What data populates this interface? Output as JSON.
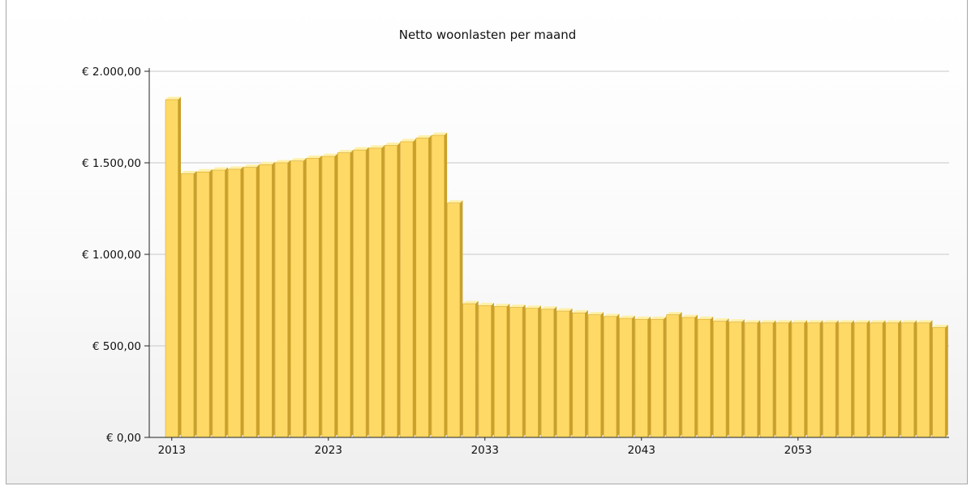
{
  "chart_data": {
    "type": "bar",
    "title": "Netto woonlasten per maand",
    "xlabel": "",
    "ylabel": "",
    "ylim": [
      0,
      2000
    ],
    "yticks": [
      {
        "value": 0,
        "label": "€ 0,00"
      },
      {
        "value": 500,
        "label": "€ 500,00"
      },
      {
        "value": 1000,
        "label": "€ 1.000,00"
      },
      {
        "value": 1500,
        "label": "€ 1.500,00"
      },
      {
        "value": 2000,
        "label": "€ 2.000,00"
      }
    ],
    "xticks": [
      "2013",
      "2023",
      "2033",
      "2043",
      "2053"
    ],
    "grid": true,
    "bar_color": "#ffd966",
    "categories": [
      2013,
      2014,
      2015,
      2016,
      2017,
      2018,
      2019,
      2020,
      2021,
      2022,
      2023,
      2024,
      2025,
      2026,
      2027,
      2028,
      2029,
      2030,
      2031,
      2032,
      2033,
      2034,
      2035,
      2036,
      2037,
      2038,
      2039,
      2040,
      2041,
      2042,
      2043,
      2044,
      2045,
      2046,
      2047,
      2048,
      2049,
      2050,
      2051,
      2052,
      2053,
      2054,
      2055,
      2056,
      2057,
      2058,
      2059,
      2060,
      2061,
      2062
    ],
    "values": [
      1845,
      1440,
      1450,
      1460,
      1465,
      1475,
      1490,
      1500,
      1510,
      1525,
      1535,
      1555,
      1570,
      1580,
      1595,
      1615,
      1635,
      1650,
      1280,
      730,
      720,
      715,
      710,
      705,
      700,
      690,
      680,
      670,
      660,
      650,
      645,
      645,
      670,
      655,
      645,
      635,
      630,
      625,
      625,
      625,
      625,
      625,
      625,
      625,
      625,
      625,
      625,
      625,
      625,
      600
    ]
  }
}
